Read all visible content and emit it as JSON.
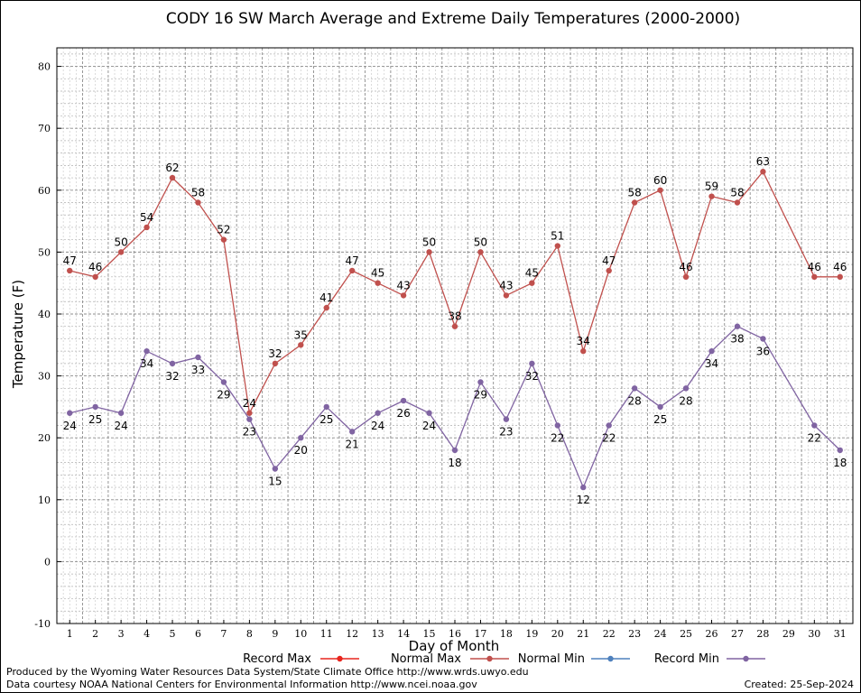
{
  "chart_data": {
    "type": "line",
    "title": "CODY 16 SW March Average and Extreme Daily Temperatures (2000-2000)",
    "xlabel": "Day of Month",
    "ylabel": "Temperature (F)",
    "ylim": [
      -10,
      83
    ],
    "yticks": [
      -10,
      0,
      10,
      20,
      30,
      40,
      50,
      60,
      70,
      80
    ],
    "x": [
      1,
      2,
      3,
      4,
      5,
      6,
      7,
      8,
      9,
      10,
      11,
      12,
      13,
      14,
      15,
      16,
      17,
      18,
      19,
      20,
      21,
      22,
      23,
      24,
      25,
      26,
      27,
      28,
      29,
      30,
      31
    ],
    "grid": true,
    "legend_position": "bottom",
    "legend": [
      {
        "name": "Record Max",
        "color": "#e8261e"
      },
      {
        "name": "Normal Max",
        "color": "#c0504d"
      },
      {
        "name": "Normal Min",
        "color": "#4f81bd"
      },
      {
        "name": "Record Min",
        "color": "#8064a2"
      }
    ],
    "series": [
      {
        "name": "Normal Max",
        "color": "#c0504d",
        "values": [
          47,
          46,
          50,
          54,
          62,
          58,
          52,
          24,
          32,
          35,
          41,
          47,
          45,
          43,
          50,
          38,
          50,
          43,
          45,
          51,
          34,
          47,
          58,
          60,
          46,
          59,
          58,
          63,
          null,
          46,
          46
        ]
      },
      {
        "name": "Record Min",
        "color": "#8064a2",
        "values": [
          24,
          25,
          24,
          34,
          32,
          33,
          29,
          23,
          15,
          20,
          25,
          21,
          24,
          26,
          24,
          18,
          29,
          23,
          32,
          22,
          12,
          22,
          28,
          25,
          28,
          34,
          38,
          36,
          null,
          22,
          18
        ]
      }
    ]
  },
  "footer": {
    "left_line1": "Produced by the Wyoming Water Resources Data System/State Climate Office http://www.wrds.uwyo.edu",
    "left_line2": "Data courtesy NOAA National Centers for Environmental Information http://www.ncei.noaa.gov",
    "right": "Created:  25-Sep-2024"
  }
}
